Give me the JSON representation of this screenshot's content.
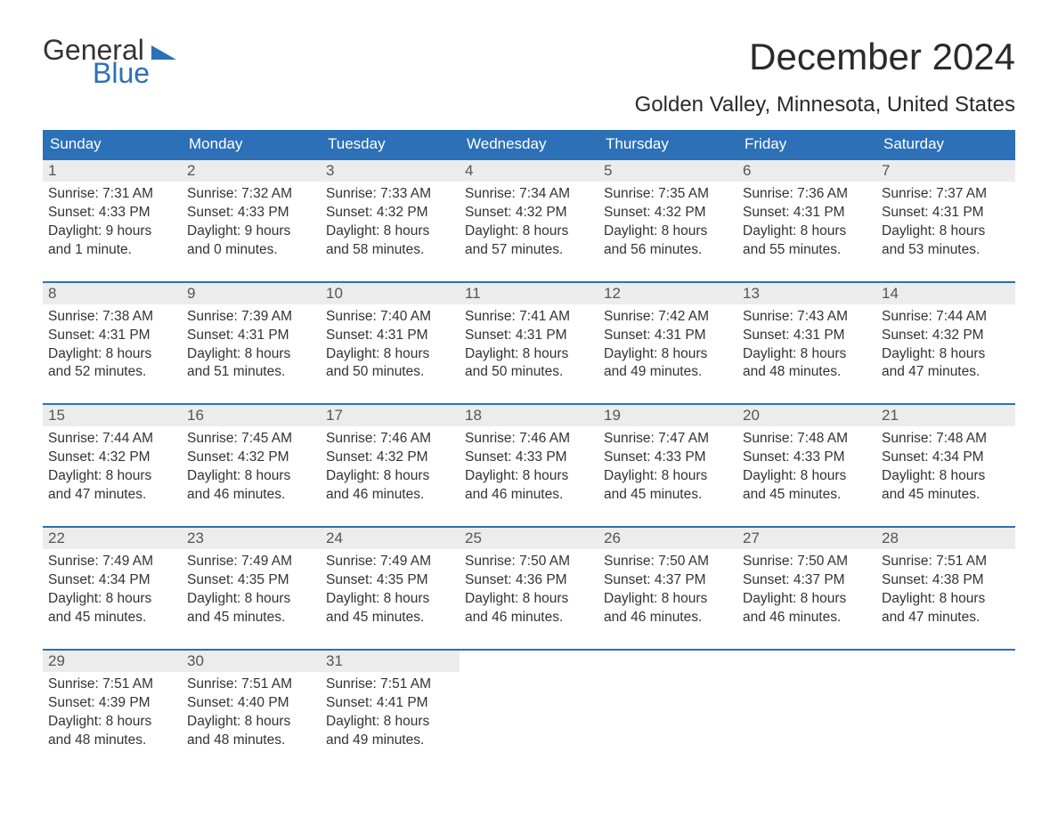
{
  "brand": {
    "line1": "General",
    "line2": "Blue",
    "general_color": "#333333",
    "blue_color": "#2c70b7",
    "mark_color": "#2c70b7"
  },
  "header": {
    "title": "December 2024",
    "subtitle": "Golden Valley, Minnesota, United States"
  },
  "style": {
    "header_bg": "#2c70b7",
    "header_text": "#ffffff",
    "daynum_bg": "#ececec",
    "row_border_color": "#2c70b7",
    "body_text": "#333333",
    "daynum_text": "#555555",
    "background": "#ffffff",
    "title_fontsize": 42,
    "subtitle_fontsize": 24,
    "th_fontsize": 17,
    "cell_fontsize": 15.5
  },
  "columns": [
    "Sunday",
    "Monday",
    "Tuesday",
    "Wednesday",
    "Thursday",
    "Friday",
    "Saturday"
  ],
  "weeks": [
    [
      {
        "day": "1",
        "sunrise": "Sunrise: 7:31 AM",
        "sunset": "Sunset: 4:33 PM",
        "dl1": "Daylight: 9 hours",
        "dl2": "and 1 minute."
      },
      {
        "day": "2",
        "sunrise": "Sunrise: 7:32 AM",
        "sunset": "Sunset: 4:33 PM",
        "dl1": "Daylight: 9 hours",
        "dl2": "and 0 minutes."
      },
      {
        "day": "3",
        "sunrise": "Sunrise: 7:33 AM",
        "sunset": "Sunset: 4:32 PM",
        "dl1": "Daylight: 8 hours",
        "dl2": "and 58 minutes."
      },
      {
        "day": "4",
        "sunrise": "Sunrise: 7:34 AM",
        "sunset": "Sunset: 4:32 PM",
        "dl1": "Daylight: 8 hours",
        "dl2": "and 57 minutes."
      },
      {
        "day": "5",
        "sunrise": "Sunrise: 7:35 AM",
        "sunset": "Sunset: 4:32 PM",
        "dl1": "Daylight: 8 hours",
        "dl2": "and 56 minutes."
      },
      {
        "day": "6",
        "sunrise": "Sunrise: 7:36 AM",
        "sunset": "Sunset: 4:31 PM",
        "dl1": "Daylight: 8 hours",
        "dl2": "and 55 minutes."
      },
      {
        "day": "7",
        "sunrise": "Sunrise: 7:37 AM",
        "sunset": "Sunset: 4:31 PM",
        "dl1": "Daylight: 8 hours",
        "dl2": "and 53 minutes."
      }
    ],
    [
      {
        "day": "8",
        "sunrise": "Sunrise: 7:38 AM",
        "sunset": "Sunset: 4:31 PM",
        "dl1": "Daylight: 8 hours",
        "dl2": "and 52 minutes."
      },
      {
        "day": "9",
        "sunrise": "Sunrise: 7:39 AM",
        "sunset": "Sunset: 4:31 PM",
        "dl1": "Daylight: 8 hours",
        "dl2": "and 51 minutes."
      },
      {
        "day": "10",
        "sunrise": "Sunrise: 7:40 AM",
        "sunset": "Sunset: 4:31 PM",
        "dl1": "Daylight: 8 hours",
        "dl2": "and 50 minutes."
      },
      {
        "day": "11",
        "sunrise": "Sunrise: 7:41 AM",
        "sunset": "Sunset: 4:31 PM",
        "dl1": "Daylight: 8 hours",
        "dl2": "and 50 minutes."
      },
      {
        "day": "12",
        "sunrise": "Sunrise: 7:42 AM",
        "sunset": "Sunset: 4:31 PM",
        "dl1": "Daylight: 8 hours",
        "dl2": "and 49 minutes."
      },
      {
        "day": "13",
        "sunrise": "Sunrise: 7:43 AM",
        "sunset": "Sunset: 4:31 PM",
        "dl1": "Daylight: 8 hours",
        "dl2": "and 48 minutes."
      },
      {
        "day": "14",
        "sunrise": "Sunrise: 7:44 AM",
        "sunset": "Sunset: 4:32 PM",
        "dl1": "Daylight: 8 hours",
        "dl2": "and 47 minutes."
      }
    ],
    [
      {
        "day": "15",
        "sunrise": "Sunrise: 7:44 AM",
        "sunset": "Sunset: 4:32 PM",
        "dl1": "Daylight: 8 hours",
        "dl2": "and 47 minutes."
      },
      {
        "day": "16",
        "sunrise": "Sunrise: 7:45 AM",
        "sunset": "Sunset: 4:32 PM",
        "dl1": "Daylight: 8 hours",
        "dl2": "and 46 minutes."
      },
      {
        "day": "17",
        "sunrise": "Sunrise: 7:46 AM",
        "sunset": "Sunset: 4:32 PM",
        "dl1": "Daylight: 8 hours",
        "dl2": "and 46 minutes."
      },
      {
        "day": "18",
        "sunrise": "Sunrise: 7:46 AM",
        "sunset": "Sunset: 4:33 PM",
        "dl1": "Daylight: 8 hours",
        "dl2": "and 46 minutes."
      },
      {
        "day": "19",
        "sunrise": "Sunrise: 7:47 AM",
        "sunset": "Sunset: 4:33 PM",
        "dl1": "Daylight: 8 hours",
        "dl2": "and 45 minutes."
      },
      {
        "day": "20",
        "sunrise": "Sunrise: 7:48 AM",
        "sunset": "Sunset: 4:33 PM",
        "dl1": "Daylight: 8 hours",
        "dl2": "and 45 minutes."
      },
      {
        "day": "21",
        "sunrise": "Sunrise: 7:48 AM",
        "sunset": "Sunset: 4:34 PM",
        "dl1": "Daylight: 8 hours",
        "dl2": "and 45 minutes."
      }
    ],
    [
      {
        "day": "22",
        "sunrise": "Sunrise: 7:49 AM",
        "sunset": "Sunset: 4:34 PM",
        "dl1": "Daylight: 8 hours",
        "dl2": "and 45 minutes."
      },
      {
        "day": "23",
        "sunrise": "Sunrise: 7:49 AM",
        "sunset": "Sunset: 4:35 PM",
        "dl1": "Daylight: 8 hours",
        "dl2": "and 45 minutes."
      },
      {
        "day": "24",
        "sunrise": "Sunrise: 7:49 AM",
        "sunset": "Sunset: 4:35 PM",
        "dl1": "Daylight: 8 hours",
        "dl2": "and 45 minutes."
      },
      {
        "day": "25",
        "sunrise": "Sunrise: 7:50 AM",
        "sunset": "Sunset: 4:36 PM",
        "dl1": "Daylight: 8 hours",
        "dl2": "and 46 minutes."
      },
      {
        "day": "26",
        "sunrise": "Sunrise: 7:50 AM",
        "sunset": "Sunset: 4:37 PM",
        "dl1": "Daylight: 8 hours",
        "dl2": "and 46 minutes."
      },
      {
        "day": "27",
        "sunrise": "Sunrise: 7:50 AM",
        "sunset": "Sunset: 4:37 PM",
        "dl1": "Daylight: 8 hours",
        "dl2": "and 46 minutes."
      },
      {
        "day": "28",
        "sunrise": "Sunrise: 7:51 AM",
        "sunset": "Sunset: 4:38 PM",
        "dl1": "Daylight: 8 hours",
        "dl2": "and 47 minutes."
      }
    ],
    [
      {
        "day": "29",
        "sunrise": "Sunrise: 7:51 AM",
        "sunset": "Sunset: 4:39 PM",
        "dl1": "Daylight: 8 hours",
        "dl2": "and 48 minutes."
      },
      {
        "day": "30",
        "sunrise": "Sunrise: 7:51 AM",
        "sunset": "Sunset: 4:40 PM",
        "dl1": "Daylight: 8 hours",
        "dl2": "and 48 minutes."
      },
      {
        "day": "31",
        "sunrise": "Sunrise: 7:51 AM",
        "sunset": "Sunset: 4:41 PM",
        "dl1": "Daylight: 8 hours",
        "dl2": "and 49 minutes."
      },
      null,
      null,
      null,
      null
    ]
  ]
}
